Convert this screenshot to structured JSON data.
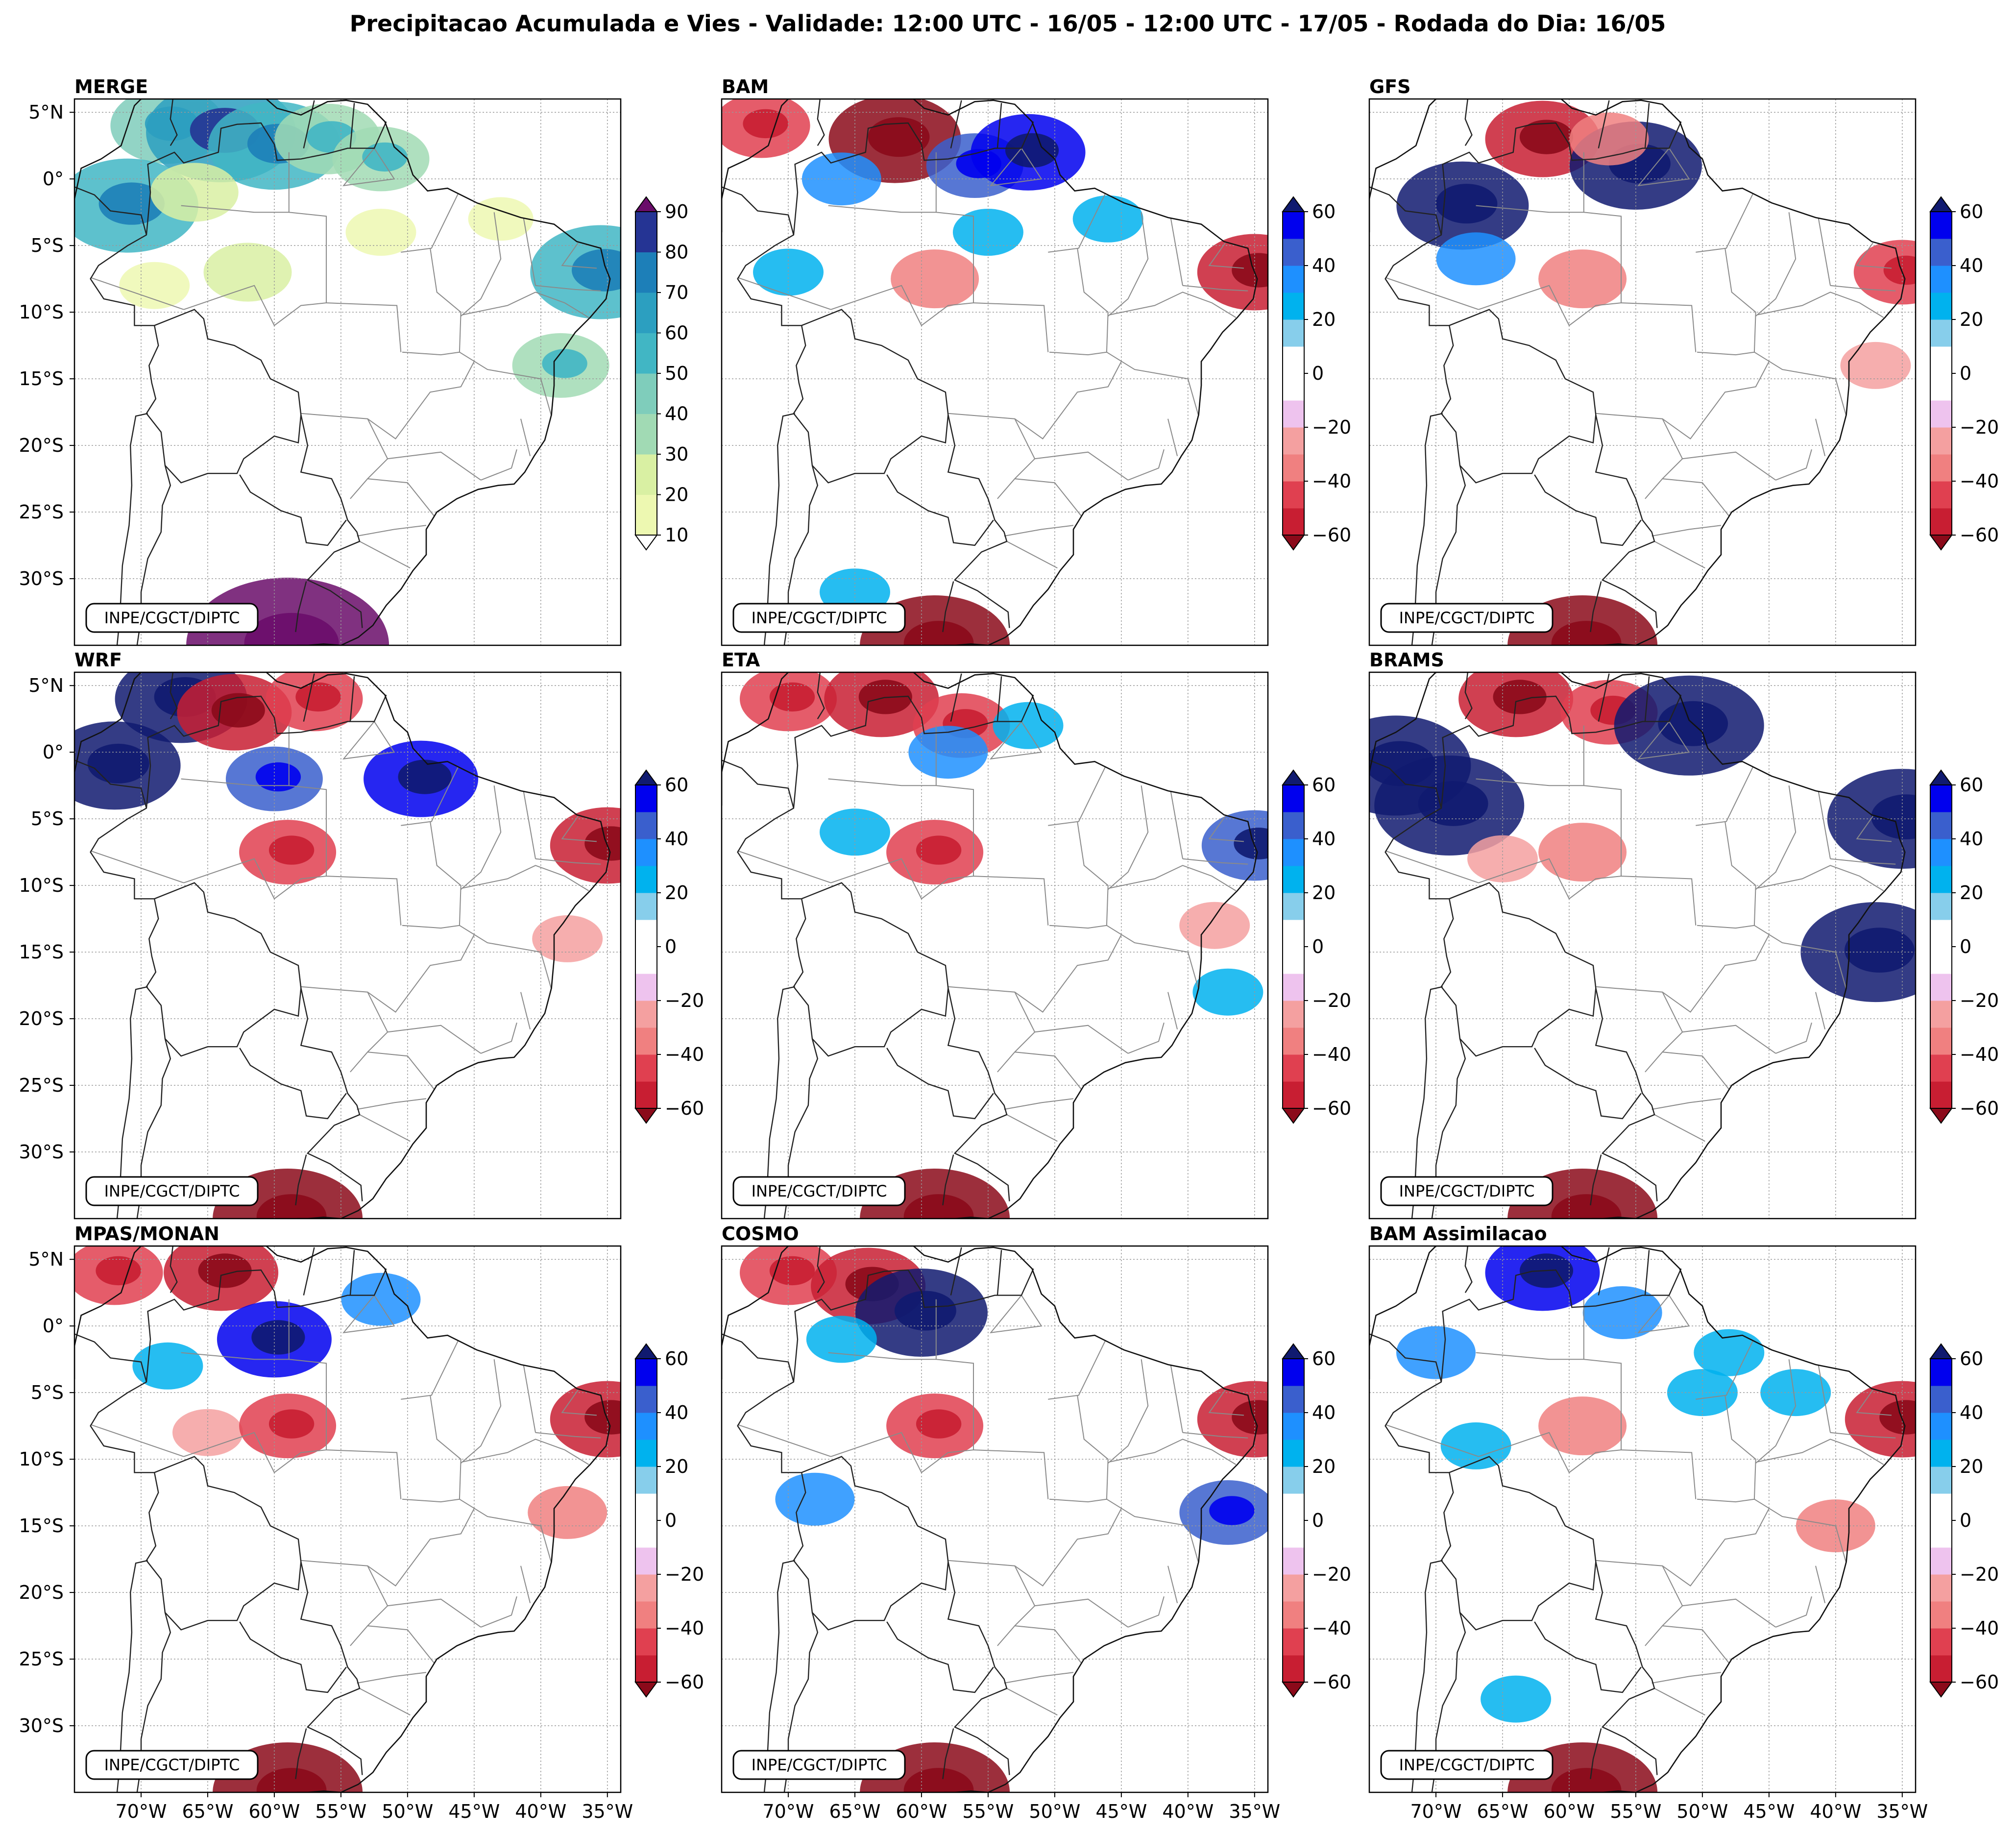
{
  "title": "Precipitacao Acumulada e Vies - Validade: 12:00 UTC - 16/05 - 12:00 UTC - 17/05 - Rodada do Dia: 16/05",
  "watermark": "INPE/CGCT/DIPTC",
  "lat_ticks": [
    "5°N",
    "0°",
    "5°S",
    "10°S",
    "15°S",
    "20°S",
    "25°S",
    "30°S"
  ],
  "lon_ticks": [
    "70°W",
    "65°W",
    "60°W",
    "55°W",
    "50°W",
    "45°W",
    "40°W",
    "35°W"
  ],
  "panels": [
    {
      "id": "merge",
      "title": "MERGE",
      "scale": "precip",
      "blobs": [
        {
          "lon": -68,
          "lat": 4,
          "v": 40
        },
        {
          "lon": -64,
          "lat": 3.5,
          "v": 60
        },
        {
          "lon": -60,
          "lat": 2.5,
          "v": 50
        },
        {
          "lon": -56,
          "lat": 3,
          "v": 35
        },
        {
          "lon": -52,
          "lat": 1.5,
          "v": 30
        },
        {
          "lon": -71,
          "lat": -2,
          "v": 55
        },
        {
          "lon": -66,
          "lat": -1,
          "v": 25
        },
        {
          "lon": -62,
          "lat": -7,
          "v": 25
        },
        {
          "lon": -69,
          "lat": -8,
          "v": 15
        },
        {
          "lon": -52,
          "lat": -4,
          "v": 15
        },
        {
          "lon": -43,
          "lat": -3,
          "v": 12
        },
        {
          "lon": -35.5,
          "lat": -7,
          "v": 55
        },
        {
          "lon": -38.5,
          "lat": -14,
          "v": 30
        },
        {
          "lon": -59,
          "lat": -35,
          "v": 90
        }
      ]
    },
    {
      "id": "bam",
      "title": "BAM",
      "scale": "bias",
      "blobs": [
        {
          "lon": -72,
          "lat": 4,
          "v": -30
        },
        {
          "lon": -62,
          "lat": 3,
          "v": -50
        },
        {
          "lon": -66,
          "lat": 0,
          "v": 20
        },
        {
          "lon": -56,
          "lat": 1,
          "v": 30
        },
        {
          "lon": -52,
          "lat": 2,
          "v": 40
        },
        {
          "lon": -70,
          "lat": -7,
          "v": 15
        },
        {
          "lon": -55,
          "lat": -4,
          "v": 15
        },
        {
          "lon": -46,
          "lat": -3,
          "v": 15
        },
        {
          "lon": -59,
          "lat": -7.5,
          "v": -25
        },
        {
          "lon": -35,
          "lat": -7,
          "v": -40
        },
        {
          "lon": -65,
          "lat": -31,
          "v": 15
        },
        {
          "lon": -59,
          "lat": -35,
          "v": -60
        }
      ]
    },
    {
      "id": "gfs",
      "title": "GFS",
      "scale": "bias",
      "blobs": [
        {
          "lon": -68,
          "lat": -2,
          "v": 50
        },
        {
          "lon": -62,
          "lat": 3,
          "v": -40
        },
        {
          "lon": -55,
          "lat": 1,
          "v": 50
        },
        {
          "lon": -57,
          "lat": 3,
          "v": -20
        },
        {
          "lon": -67,
          "lat": -6,
          "v": 20
        },
        {
          "lon": -59,
          "lat": -7.5,
          "v": -25
        },
        {
          "lon": -37,
          "lat": -14,
          "v": -15
        },
        {
          "lon": -35,
          "lat": -7,
          "v": -30
        },
        {
          "lon": -59,
          "lat": -35,
          "v": -60
        }
      ]
    },
    {
      "id": "wrf",
      "title": "WRF",
      "scale": "bias",
      "blobs": [
        {
          "lon": -72,
          "lat": -1,
          "v": 50
        },
        {
          "lon": -67,
          "lat": 4,
          "v": 50
        },
        {
          "lon": -63,
          "lat": 3,
          "v": -40
        },
        {
          "lon": -57,
          "lat": 4,
          "v": -30
        },
        {
          "lon": -60,
          "lat": -2,
          "v": 30
        },
        {
          "lon": -49,
          "lat": -2,
          "v": 40
        },
        {
          "lon": -59,
          "lat": -7.5,
          "v": -30
        },
        {
          "lon": -35,
          "lat": -7,
          "v": -40
        },
        {
          "lon": -38,
          "lat": -14,
          "v": -15
        },
        {
          "lon": -59,
          "lat": -35,
          "v": -60
        }
      ]
    },
    {
      "id": "eta",
      "title": "ETA",
      "scale": "bias",
      "blobs": [
        {
          "lon": -70,
          "lat": 4,
          "v": -30
        },
        {
          "lon": -63,
          "lat": 4,
          "v": -40
        },
        {
          "lon": -57,
          "lat": 2,
          "v": -30
        },
        {
          "lon": -65,
          "lat": -6,
          "v": 15
        },
        {
          "lon": -58,
          "lat": 0,
          "v": 20
        },
        {
          "lon": -52,
          "lat": 2,
          "v": 15
        },
        {
          "lon": -59,
          "lat": -7.5,
          "v": -30
        },
        {
          "lon": -35,
          "lat": -7,
          "v": 35
        },
        {
          "lon": -38,
          "lat": -13,
          "v": -15
        },
        {
          "lon": -37,
          "lat": -18,
          "v": 15
        },
        {
          "lon": -59,
          "lat": -35,
          "v": -60
        }
      ]
    },
    {
      "id": "brams",
      "title": "BRAMS",
      "scale": "bias",
      "blobs": [
        {
          "lon": -73,
          "lat": -1,
          "v": 60
        },
        {
          "lon": -69,
          "lat": -4,
          "v": 60
        },
        {
          "lon": -64,
          "lat": 4,
          "v": -40
        },
        {
          "lon": -57,
          "lat": 3,
          "v": -30
        },
        {
          "lon": -51,
          "lat": 2,
          "v": 60
        },
        {
          "lon": -65,
          "lat": -8,
          "v": -15
        },
        {
          "lon": -59,
          "lat": -7.5,
          "v": -25
        },
        {
          "lon": -35,
          "lat": -5,
          "v": 60
        },
        {
          "lon": -37,
          "lat": -15,
          "v": 60
        },
        {
          "lon": -59,
          "lat": -35,
          "v": -60
        }
      ]
    },
    {
      "id": "mpas",
      "title": "MPAS/MONAN",
      "scale": "bias",
      "blobs": [
        {
          "lon": -72,
          "lat": 4,
          "v": -30
        },
        {
          "lon": -64,
          "lat": 4,
          "v": -40
        },
        {
          "lon": -60,
          "lat": -1,
          "v": 40
        },
        {
          "lon": -52,
          "lat": 2,
          "v": 20
        },
        {
          "lon": -68,
          "lat": -3,
          "v": 15
        },
        {
          "lon": -65,
          "lat": -8,
          "v": -15
        },
        {
          "lon": -59,
          "lat": -7.5,
          "v": -30
        },
        {
          "lon": -35,
          "lat": -7,
          "v": -40
        },
        {
          "lon": -38,
          "lat": -14,
          "v": -20
        },
        {
          "lon": -59,
          "lat": -35,
          "v": -60
        }
      ]
    },
    {
      "id": "cosmo",
      "title": "COSMO",
      "scale": "bias",
      "blobs": [
        {
          "lon": -70,
          "lat": 4,
          "v": -30
        },
        {
          "lon": -64,
          "lat": 3,
          "v": -40
        },
        {
          "lon": -60,
          "lat": 1,
          "v": 50
        },
        {
          "lon": -66,
          "lat": -1,
          "v": 15
        },
        {
          "lon": -68,
          "lat": -13,
          "v": 20
        },
        {
          "lon": -59,
          "lat": -7.5,
          "v": -30
        },
        {
          "lon": -35,
          "lat": -7,
          "v": -40
        },
        {
          "lon": -37,
          "lat": -14,
          "v": 30
        },
        {
          "lon": -59,
          "lat": -35,
          "v": -60
        }
      ]
    },
    {
      "id": "bamassim",
      "title": "BAM Assimilacao",
      "scale": "bias",
      "blobs": [
        {
          "lon": -62,
          "lat": 4,
          "v": 40
        },
        {
          "lon": -56,
          "lat": 1,
          "v": 20
        },
        {
          "lon": -48,
          "lat": -2,
          "v": 15
        },
        {
          "lon": -50,
          "lat": -5,
          "v": 15
        },
        {
          "lon": -43,
          "lat": -5,
          "v": 15
        },
        {
          "lon": -70,
          "lat": -2,
          "v": 20
        },
        {
          "lon": -67,
          "lat": -9,
          "v": 15
        },
        {
          "lon": -59,
          "lat": -7.5,
          "v": -25
        },
        {
          "lon": -35,
          "lat": -7,
          "v": -40
        },
        {
          "lon": -40,
          "lat": -15,
          "v": -20
        },
        {
          "lon": -64,
          "lat": -28,
          "v": 15
        },
        {
          "lon": -59,
          "lat": -35,
          "v": -60
        }
      ]
    }
  ],
  "precip_scale": {
    "ticks": [
      "10",
      "20",
      "30",
      "40",
      "50",
      "60",
      "70",
      "80",
      "90"
    ],
    "colors": [
      "#edf8b1",
      "#d9f0a3",
      "#a1dab4",
      "#7fcdbb",
      "#41b6c4",
      "#2c9fc0",
      "#1d7fb8",
      "#253494",
      "#081d58"
    ],
    "under": "#ffffff",
    "over": "#6a0d6a"
  },
  "bias_scale": {
    "ticks": [
      "60",
      "40",
      "20",
      "0",
      "−20",
      "−40",
      "−60"
    ],
    "colors_pos": [
      "#87ceeb",
      "#00b2ee",
      "#1e90ff",
      "#3a5fcd",
      "#0000ee",
      "#101a70"
    ],
    "colors_neg": [
      "#eec3ee",
      "#f4a0a0",
      "#f08080",
      "#e04050",
      "#c81e32",
      "#8b0a1a"
    ],
    "zero": "#ffffff"
  }
}
